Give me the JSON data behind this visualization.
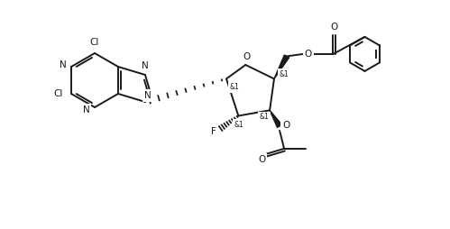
{
  "bg_color": "#ffffff",
  "lc": "#1a1a1a",
  "lw": 1.4,
  "figsize": [
    4.99,
    2.54
  ],
  "dpi": 100,
  "xlim": [
    0,
    9.98
  ],
  "ylim": [
    0,
    5.08
  ]
}
